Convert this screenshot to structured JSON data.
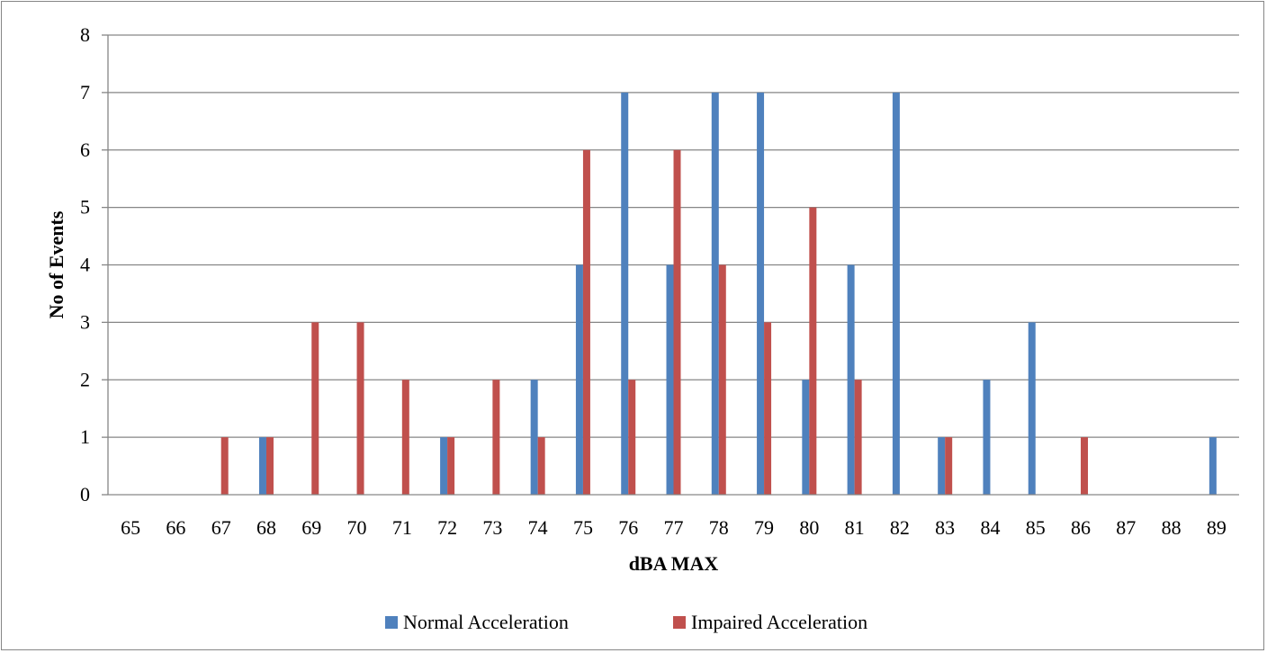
{
  "chart_data": {
    "type": "bar",
    "title": "",
    "xlabel": "dBA MAX",
    "ylabel": "No of Events",
    "ylim": [
      0,
      8
    ],
    "yticks": [
      0,
      1,
      2,
      3,
      4,
      5,
      6,
      7,
      8
    ],
    "grid": true,
    "legend_position": "bottom",
    "categories": [
      "65",
      "66",
      "67",
      "68",
      "69",
      "70",
      "71",
      "72",
      "73",
      "74",
      "75",
      "76",
      "77",
      "78",
      "79",
      "80",
      "81",
      "82",
      "83",
      "84",
      "85",
      "86",
      "87",
      "88",
      "89"
    ],
    "series": [
      {
        "name": "Normal Acceleration",
        "color": "#4F81BD",
        "values": [
          0,
          0,
          0,
          1,
          0,
          0,
          0,
          1,
          0,
          2,
          4,
          7,
          4,
          7,
          7,
          2,
          4,
          7,
          1,
          2,
          3,
          0,
          0,
          0,
          1
        ]
      },
      {
        "name": "Impaired Acceleration",
        "color": "#C0504D",
        "values": [
          0,
          0,
          1,
          1,
          3,
          3,
          2,
          1,
          2,
          1,
          6,
          2,
          6,
          4,
          3,
          5,
          2,
          0,
          1,
          0,
          0,
          1,
          0,
          0,
          0
        ]
      }
    ]
  }
}
